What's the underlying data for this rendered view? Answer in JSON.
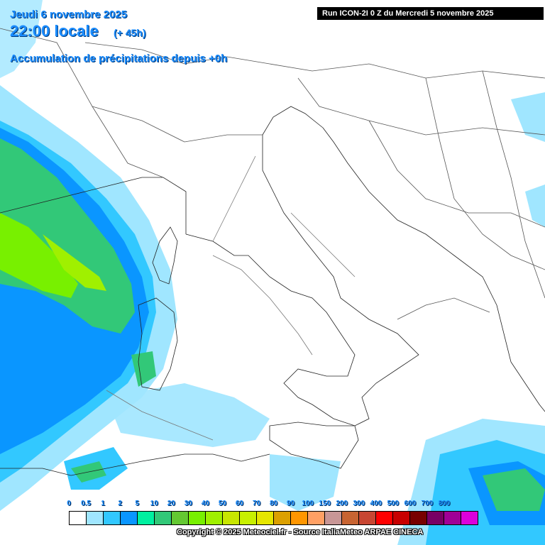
{
  "header": {
    "date": "Jeudi 6 novembre 2025",
    "time": "22:00 locale",
    "offset": "(+ 45h)",
    "field": "Accumulation de précipitations depuis +0h"
  },
  "run_info": "Run ICON-2I 0 Z du Mercredi 5 novembre 2025",
  "legend": {
    "labels": [
      "0",
      "0.5",
      "1",
      "2",
      "5",
      "10",
      "20",
      "30",
      "40",
      "50",
      "60",
      "70",
      "80",
      "90",
      "100",
      "150",
      "200",
      "300",
      "400",
      "500",
      "600",
      "700",
      "800"
    ],
    "colors": [
      "#ffffff",
      "#a0e6ff",
      "#32c8ff",
      "#0a96ff",
      "#00f0a0",
      "#32c878",
      "#64c832",
      "#78f000",
      "#a0f000",
      "#c8e600",
      "#c8f000",
      "#e6e600",
      "#dca000",
      "#ff9600",
      "#ffa064",
      "#c89696",
      "#c86432",
      "#c84632",
      "#ff0000",
      "#c80000",
      "#780000",
      "#780064",
      "#a00096",
      "#dc00dc"
    ]
  },
  "colors": {
    "land": "#ffffff",
    "border": "#222222",
    "title": "#1a8cff",
    "precip_light": "#a0e6ff",
    "precip_mid": "#32c8ff",
    "precip_heavy": "#0a96ff",
    "precip_green": "#32c878",
    "precip_lime": "#78f000"
  },
  "copyright": "Copyright © 2025 Meteociel.fr - Source ItaliaMeteo ARPAE CINECA"
}
